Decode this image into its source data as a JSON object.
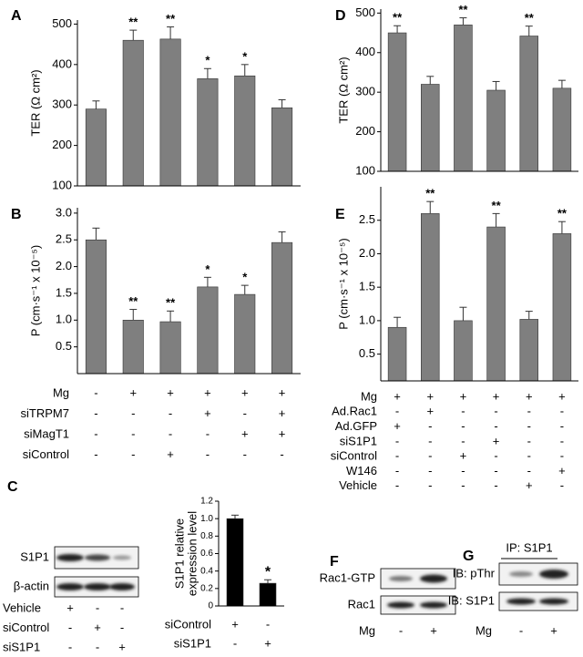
{
  "chart_data": [
    {
      "type": "bar",
      "panel": "A",
      "ylabel": "TER (Ω cm²)",
      "values": [
        290,
        460,
        463,
        365,
        372,
        293
      ],
      "errors": [
        20,
        25,
        30,
        25,
        28,
        20
      ],
      "significance": [
        null,
        "**",
        "**",
        "*",
        "*",
        null
      ],
      "color": "#7f7f7f",
      "ylim": [
        100,
        510
      ],
      "yticks": [
        100,
        200,
        300,
        400,
        500
      ]
    },
    {
      "type": "bar",
      "panel": "B",
      "ylabel": "P (cm·s⁻¹ x 10⁻⁵)",
      "values": [
        2.5,
        1.0,
        0.97,
        1.62,
        1.48,
        2.45
      ],
      "errors": [
        0.22,
        0.2,
        0.2,
        0.18,
        0.17,
        0.2
      ],
      "significance": [
        null,
        "**",
        "**",
        "*",
        "*",
        null
      ],
      "color": "#7f7f7f",
      "ylim": [
        0,
        3.1
      ],
      "yticks": [
        0.5,
        {
          "value": 1,
          "label": "1.0"
        },
        1.5,
        {
          "value": 2,
          "label": "2.0"
        },
        2.5,
        {
          "value": 3,
          "label": "3.0"
        }
      ]
    },
    {
      "type": "bar",
      "ylabel": [
        "S1P1 relative",
        "expression level"
      ],
      "values": [
        1.0,
        0.26
      ],
      "errors": [
        0.04,
        0.04
      ],
      "significance": [
        null,
        "*"
      ],
      "color": "#000000",
      "ylim": [
        0,
        1.2
      ],
      "yticks": [
        0,
        0.2,
        0.4,
        0.6,
        0.8,
        {
          "value": 1,
          "label": "1.0"
        },
        1.2
      ]
    },
    {
      "type": "bar",
      "panel": "D",
      "ylabel": "TER (Ω cm²)",
      "values": [
        450,
        320,
        470,
        305,
        442,
        310
      ],
      "errors": [
        18,
        20,
        18,
        22,
        25,
        20
      ],
      "significance": [
        "**",
        null,
        "**",
        null,
        "**",
        null
      ],
      "color": "#7f7f7f",
      "ylim": [
        100,
        510
      ],
      "yticks": [
        100,
        200,
        300,
        400,
        500
      ]
    },
    {
      "type": "bar",
      "panel": "E",
      "ylabel": "P (cm·s⁻¹ x 10⁻⁵)",
      "values": [
        0.9,
        2.6,
        1.0,
        2.4,
        1.02,
        2.3
      ],
      "errors": [
        0.15,
        0.18,
        0.2,
        0.2,
        0.12,
        0.18
      ],
      "significance": [
        null,
        "**",
        null,
        "**",
        null,
        "**"
      ],
      "color": "#7f7f7f",
      "ylim": [
        0.1,
        3.0
      ],
      "yticks": [
        0.5,
        {
          "value": 1,
          "label": "1.0"
        },
        1.5,
        {
          "value": 2,
          "label": "2.0"
        },
        2.5
      ]
    }
  ],
  "tables": {
    "ab": {
      "rows": [
        {
          "label": "Mg",
          "signs": [
            "-",
            "+",
            "+",
            "+",
            "+",
            "+"
          ]
        },
        {
          "label": "siTRPM7",
          "signs": [
            "-",
            "-",
            "-",
            "+",
            "-",
            "+"
          ]
        },
        {
          "label": "siMagT1",
          "signs": [
            "-",
            "-",
            "-",
            "-",
            "+",
            "+"
          ]
        },
        {
          "label": "siControl",
          "signs": [
            "-",
            "-",
            "+",
            "-",
            "-",
            "-"
          ]
        }
      ]
    },
    "de": {
      "rows": [
        {
          "label": "Mg",
          "signs": [
            "+",
            "+",
            "+",
            "+",
            "+",
            "+"
          ]
        },
        {
          "label": "Ad.Rac1",
          "signs": [
            "-",
            "+",
            "-",
            "-",
            "-",
            "-"
          ]
        },
        {
          "label": "Ad.GFP",
          "signs": [
            "+",
            "-",
            "-",
            "-",
            "-",
            "-"
          ]
        },
        {
          "label": "siS1P1",
          "signs": [
            "-",
            "-",
            "-",
            "+",
            "-",
            "-"
          ]
        },
        {
          "label": "siControl",
          "signs": [
            "-",
            "-",
            "+",
            "-",
            "-",
            "-"
          ]
        },
        {
          "label": "W146",
          "signs": [
            "-",
            "-",
            "-",
            "-",
            "-",
            "+"
          ]
        },
        {
          "label": "Vehicle",
          "signs": [
            "-",
            "-",
            "-",
            "-",
            "+",
            "-"
          ]
        }
      ]
    },
    "c_chart": {
      "rows": [
        {
          "label": "siControl",
          "signs": [
            "+",
            "-"
          ]
        },
        {
          "label": "siS1P1",
          "signs": [
            "-",
            "+"
          ]
        }
      ]
    },
    "c_blot": {
      "rows": [
        {
          "label": "Vehicle",
          "signs": [
            "+",
            "-",
            "-"
          ]
        },
        {
          "label": "siControl",
          "signs": [
            "-",
            "+",
            "-"
          ]
        },
        {
          "label": "siS1P1",
          "signs": [
            "-",
            "-",
            "+"
          ]
        }
      ]
    },
    "f": {
      "rows": [
        {
          "label": "Mg",
          "signs": [
            "-",
            "+"
          ]
        }
      ]
    },
    "g": {
      "rows": [
        {
          "label": "Mg",
          "signs": [
            "-",
            "+"
          ]
        }
      ]
    }
  },
  "blots": {
    "c": {
      "panel": "C",
      "bands": [
        "S1P1",
        "β-actin"
      ]
    },
    "f": {
      "panel": "F",
      "bands": [
        "Rac1-GTP",
        "Rac1"
      ]
    },
    "g": {
      "panel": "G",
      "title": "IP: S1P1",
      "bands": [
        "IB: pThr",
        "IB: S1P1"
      ]
    }
  }
}
